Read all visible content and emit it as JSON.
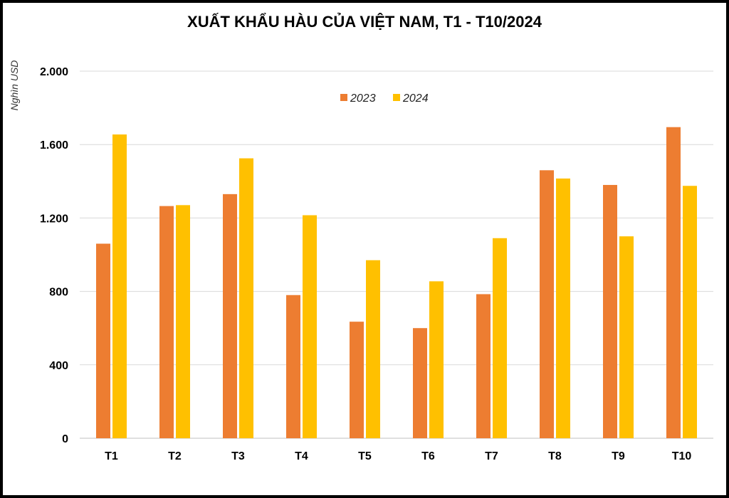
{
  "chart_data": {
    "type": "bar",
    "title": "XUẤT KHẨU HÀU CỦA VIỆT NAM, T1 - T10/2024",
    "ylabel": "Nghìn  USD",
    "xlabel": "",
    "categories": [
      "T1",
      "T2",
      "T3",
      "T4",
      "T5",
      "T6",
      "T7",
      "T8",
      "T9",
      "T10"
    ],
    "series": [
      {
        "name": "2023",
        "color": "#ED7D31",
        "values": [
          1060,
          1265,
          1330,
          780,
          635,
          600,
          785,
          1460,
          1380,
          1695
        ]
      },
      {
        "name": "2024",
        "color": "#FFC000",
        "values": [
          1655,
          1270,
          1525,
          1215,
          970,
          855,
          1090,
          1415,
          1100,
          1375
        ]
      }
    ],
    "ylim": [
      0,
      2000
    ],
    "yticks": [
      {
        "value": 0,
        "label": "0"
      },
      {
        "value": 400,
        "label": "400"
      },
      {
        "value": 800,
        "label": "800"
      },
      {
        "value": 1200,
        "label": "1.200"
      },
      {
        "value": 1600,
        "label": "1.600"
      },
      {
        "value": 2000,
        "label": "2.000"
      }
    ],
    "grid": true,
    "legend_position": "top-center"
  }
}
